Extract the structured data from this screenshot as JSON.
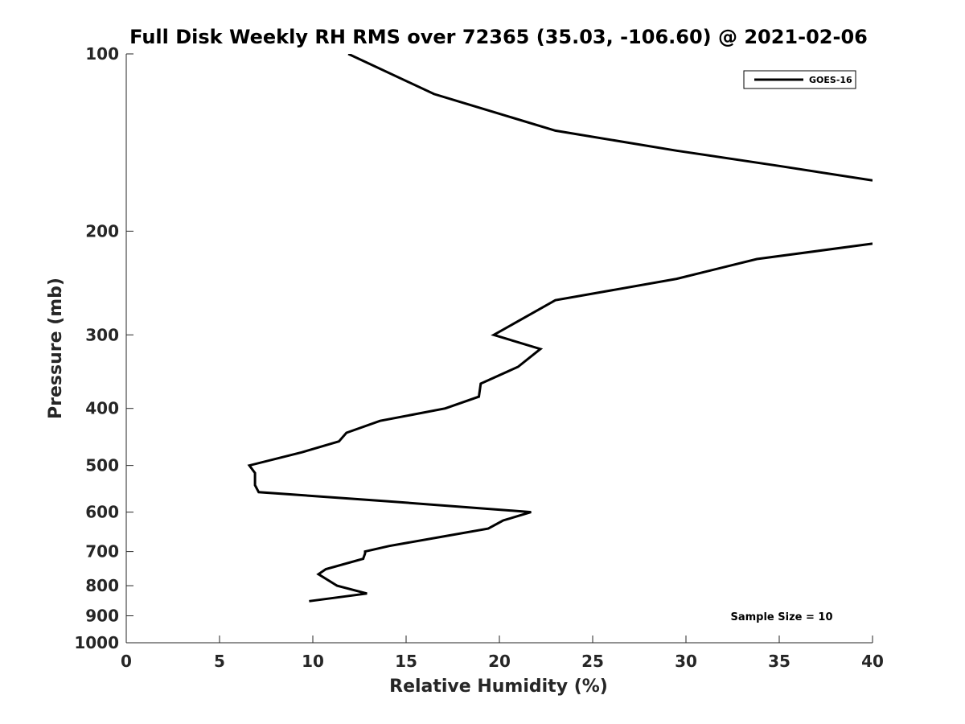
{
  "chart_data": {
    "type": "line",
    "title": "Full Disk Weekly RH RMS over 72365 (35.03, -106.60) @ 2021-02-06",
    "xlabel": "Relative Humidity (%)",
    "ylabel": "Pressure (mb)",
    "xlim": [
      0,
      40
    ],
    "ylim": [
      1000,
      100
    ],
    "yscale": "log",
    "yreverse": true,
    "grid": false,
    "x_ticks": [
      0,
      5,
      10,
      15,
      20,
      25,
      30,
      35,
      40
    ],
    "x_tick_labels": [
      "0",
      "5",
      "10",
      "15",
      "20",
      "25",
      "30",
      "35",
      "40"
    ],
    "y_ticks": [
      100,
      200,
      300,
      400,
      500,
      600,
      700,
      800,
      900,
      1000
    ],
    "y_tick_labels": [
      "100",
      "200",
      "300",
      "400",
      "500",
      "600",
      "700",
      "800",
      "900",
      "1000"
    ],
    "legend_position": "top-right",
    "series": [
      {
        "name": "GOES-16",
        "color": "#000000",
        "segments": [
          {
            "x": [
              11.9,
              16.5,
              23.0,
              29.5,
              35.0,
              40.0
            ],
            "y": [
              100,
              117,
              135,
              146,
              155,
              164
            ]
          },
          {
            "x": [
              40.0,
              33.8,
              29.5,
              23.0,
              19.7,
              22.2,
              21.0,
              19.0,
              18.9,
              17.1,
              13.6,
              11.8,
              11.4,
              9.4,
              6.6,
              6.9,
              6.9,
              7.1,
              14.0,
              21.7,
              20.2,
              19.4,
              17.0,
              14.1,
              12.8,
              12.8,
              12.7,
              10.7,
              10.3,
              11.3,
              12.9,
              9.8
            ],
            "y": [
              210,
              223,
              241,
              262,
              300,
              317,
              340,
              363,
              382,
              400,
              420,
              440,
              455,
              475,
              500,
              515,
              540,
              555,
              575,
              600,
              620,
              640,
              660,
              685,
              700,
              705,
              720,
              750,
              765,
              800,
              825,
              850
            ]
          }
        ]
      }
    ],
    "annotations": [
      {
        "text": "Sample Size = 10",
        "position": "bottom-right"
      }
    ]
  }
}
